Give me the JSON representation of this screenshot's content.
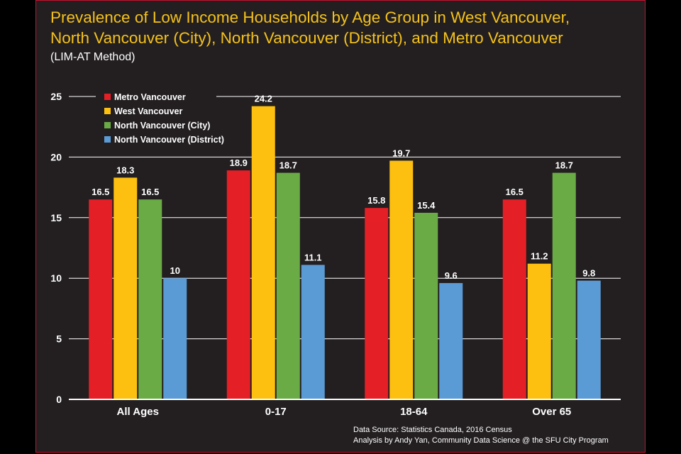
{
  "title_lines": [
    "Prevalence of Low Income Households by Age Group in West Vancouver,",
    "North Vancouver (City), North Vancouver (District), and Metro Vancouver"
  ],
  "subtitle": "(LIM-AT Method)",
  "source_lines": [
    "Data Source: Statistics Canada, 2016 Census",
    "Analysis by Andy Yan, Community Data Science @ the SFU City Program"
  ],
  "colors": {
    "background": "#231f20",
    "border": "#c8102e",
    "title": "#f5c21b",
    "text": "#ffffff"
  },
  "chart_data": {
    "type": "bar",
    "title": "Prevalence of Low Income Households by Age Group in West Vancouver, North Vancouver (City), North Vancouver (District), and Metro Vancouver",
    "subtitle": "(LIM-AT Method)",
    "categories": [
      "All Ages",
      "0-17",
      "18-64",
      "Over 65"
    ],
    "series": [
      {
        "name": "Metro Vancouver",
        "color": "#e41f26",
        "values": [
          16.5,
          18.9,
          15.8,
          16.5
        ]
      },
      {
        "name": "West Vancouver",
        "color": "#fdc010",
        "values": [
          18.3,
          24.2,
          19.7,
          11.2
        ]
      },
      {
        "name": "North Vancouver (City)",
        "color": "#6aab45",
        "values": [
          16.5,
          18.7,
          15.4,
          18.7
        ]
      },
      {
        "name": "North Vancouver (District)",
        "color": "#5b9bd5",
        "values": [
          10,
          11.1,
          9.6,
          9.8
        ]
      }
    ],
    "data_labels": [
      [
        "16.5",
        "18.9",
        "15.8",
        "16.5"
      ],
      [
        "18.3",
        "24.2",
        "19.7",
        "11.2"
      ],
      [
        "16.5",
        "18.7",
        "15.4",
        "18.7"
      ],
      [
        "10",
        "11.1",
        "9.6",
        "9.8"
      ]
    ],
    "yticks": [
      "0",
      "5",
      "10",
      "15",
      "20",
      "25"
    ],
    "ylim": [
      0,
      25
    ],
    "grid": true,
    "legend_position": "top-left",
    "xlabel": "",
    "ylabel": ""
  }
}
